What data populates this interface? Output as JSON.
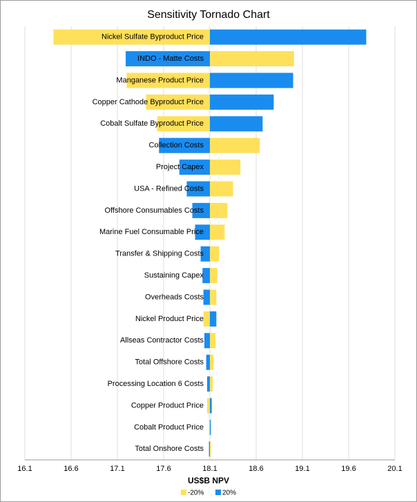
{
  "chart_data": {
    "type": "tornado",
    "title": "Sensitivity Tornado Chart",
    "x_label": "US$B NPV",
    "base": 18.1,
    "categories": [
      "Nickel Sulfate Byproduct Price",
      "INDO - Matte Costs",
      "Manganese Product Price",
      "Copper Cathode Byproduct Price",
      "Cobalt Sulfate Byproduct Price",
      "Collection Costs",
      "Project Capex",
      "USA - Refined Costs",
      "Offshore Consumables Costs",
      "Marine Fuel Consumable Price",
      "Transfer & Shipping Costs",
      "Sustaining Capex",
      "Overheads Costs",
      "Nickel Product Price",
      "Allseas Contractor Costs",
      "Total Offshore Costs",
      "Processing Location 6 Costs",
      "Copper Product Price",
      "Cobalt Product Price",
      "Total Onshore Costs"
    ],
    "series": [
      {
        "name": "-20%",
        "color": "#ffe05a",
        "values": [
          16.41,
          19.01,
          17.2,
          17.41,
          17.53,
          18.64,
          18.43,
          18.35,
          18.29,
          18.26,
          18.2,
          18.18,
          18.17,
          18.03,
          18.16,
          18.14,
          18.13,
          18.07,
          18.09,
          18.11
        ]
      },
      {
        "name": "20%",
        "color": "#1a8cf0",
        "values": [
          19.79,
          17.19,
          19.0,
          18.79,
          18.67,
          17.55,
          17.77,
          17.85,
          17.91,
          17.94,
          18.0,
          18.02,
          18.03,
          18.17,
          18.04,
          18.06,
          18.07,
          18.12,
          18.11,
          18.09
        ]
      }
    ],
    "xlim": [
      16.1,
      20.1
    ],
    "xticks": [
      16.1,
      16.6,
      17.1,
      17.6,
      18.1,
      18.6,
      19.1,
      19.6,
      20.1
    ],
    "grid": true
  }
}
